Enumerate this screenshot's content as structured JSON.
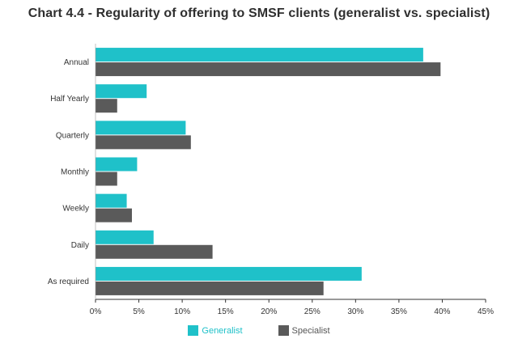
{
  "chart_data": {
    "type": "bar",
    "orientation": "horizontal",
    "title": "Chart 4.4 - Regularity of offering to SMSF clients (generalist vs. specialist)",
    "xlabel": "",
    "ylabel": "",
    "categories": [
      "Annual",
      "Half Yearly",
      "Quarterly",
      "Monthly",
      "Weekly",
      "Daily",
      "As required"
    ],
    "series": [
      {
        "name": "Generalist",
        "color": "#1fc1c9",
        "values": [
          37.8,
          5.9,
          10.4,
          4.8,
          3.6,
          6.7,
          30.7
        ]
      },
      {
        "name": "Specialist",
        "color": "#5a5a5a",
        "values": [
          39.8,
          2.5,
          11.0,
          2.5,
          4.2,
          13.5,
          26.3
        ]
      }
    ],
    "xlim": [
      0,
      45
    ],
    "ticks": [
      "0%",
      "5%",
      "10%",
      "15%",
      "20%",
      "25%",
      "30%",
      "35%",
      "40%",
      "45%"
    ],
    "tick_values": [
      0,
      5,
      10,
      15,
      20,
      25,
      30,
      35,
      40,
      45
    ],
    "grid": false,
    "legend_position": "bottom"
  },
  "legend": {
    "generalist": "Generalist",
    "specialist": "Specialist"
  },
  "colors": {
    "generalist": "#1fc1c9",
    "specialist": "#5a5a5a",
    "axis": "#333333"
  }
}
